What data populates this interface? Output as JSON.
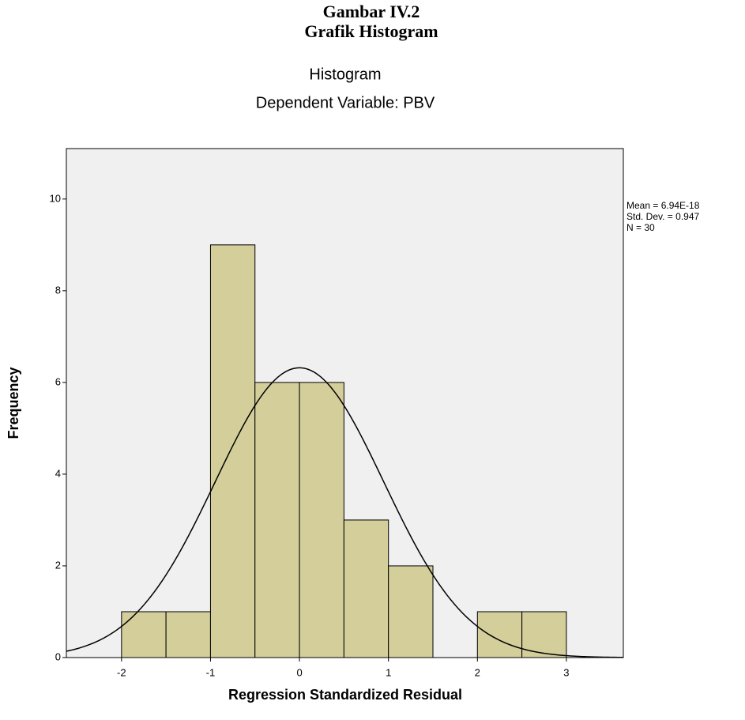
{
  "chart_data": {
    "type": "histogram",
    "figure_caption": [
      "Gambar IV.2",
      "Grafik Histogram"
    ],
    "title": "Histogram",
    "subtitle": "Dependent Variable: PBV",
    "x_label": "Regression Standardized Residual",
    "y_label": "Frequency",
    "bins": [
      -2,
      -1.5,
      -1,
      -0.5,
      0,
      0.5,
      1,
      1.5,
      2,
      2.5,
      3
    ],
    "values": [
      1,
      1,
      9,
      6,
      6,
      3,
      2,
      0,
      1,
      1
    ],
    "color": "#d3ce9a",
    "xlim": [
      -2.62,
      3.64
    ],
    "xticks": [
      -2,
      -1,
      0,
      1,
      2,
      3
    ],
    "ylim": [
      0,
      11.1
    ],
    "yticks": [
      0,
      2,
      4,
      6,
      8,
      10
    ],
    "mean": {
      "value": 6.94e-18,
      "label": "Mean = 6.94E-18"
    },
    "std_dev": {
      "value": 0.947,
      "label": "Std. Dev. = 0.947"
    },
    "n": {
      "value": 30,
      "label": "N = 30"
    }
  }
}
